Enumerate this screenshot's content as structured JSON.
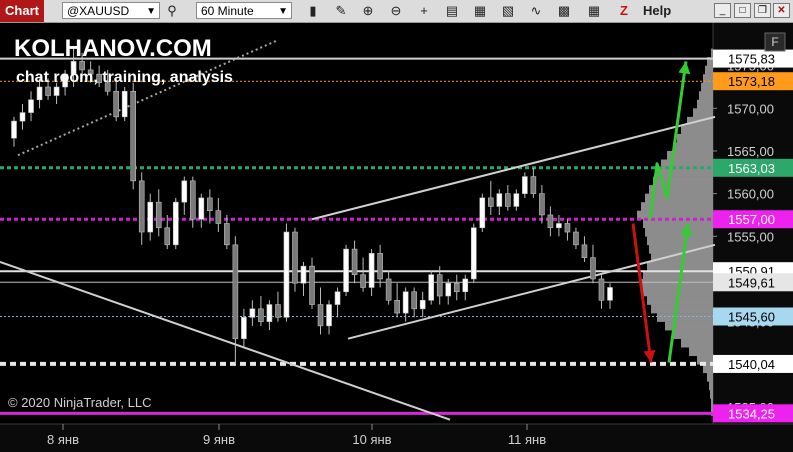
{
  "toolbar": {
    "tab_label": "Chart",
    "instrument": "@XAUUSD",
    "interval": "60 Minute",
    "help_label": "Help",
    "z_label": "Z",
    "icons": [
      "search-icon",
      "bar-style-icon",
      "pencil-icon",
      "zoom-in-icon",
      "zoom-out-icon",
      "crosshair-icon",
      "properties-icon",
      "drawing-tools-icon",
      "indicators-icon",
      "strategies-icon",
      "data-box-icon"
    ]
  },
  "overlay": {
    "brand": "KOLHANOV.COM",
    "tagline": "chat room, training, analysis",
    "copyright": "© 2020 NinjaTrader, LLC",
    "f_label": "F"
  },
  "chart_data": {
    "type": "candlestick",
    "x_labels": [
      "8 янв",
      "9 янв",
      "10 янв",
      "11 янв"
    ],
    "y_ticks": [
      "1575,00",
      "1570,00",
      "1565,00",
      "1560,00",
      "1555,00",
      "1550,00",
      "1545,00",
      "1540,00",
      "1535,00"
    ],
    "y_range": [
      1533,
      1580
    ],
    "price_markers": [
      {
        "value": "1575,83",
        "bg": "#ffffff",
        "fg": "#000000",
        "line_color": "#d0d0d0",
        "line_style": "solid",
        "line_width": 2
      },
      {
        "value": "1573,18",
        "bg": "#ff9a1a",
        "fg": "#000000",
        "line_color": "#ff9a1a",
        "line_style": "dotted",
        "line_width": 1
      },
      {
        "value": "1563,03",
        "bg": "#2ea86a",
        "fg": "#ffffff",
        "line_color": "#2ea86a",
        "line_style": "dashed",
        "line_width": 3
      },
      {
        "value": "1557,00",
        "bg": "#ee22ee",
        "fg": "#ffffff",
        "line_color": "#cc22cc",
        "line_style": "dashed",
        "line_width": 3
      },
      {
        "value": "1550,91",
        "bg": "#ffffff",
        "fg": "#000000",
        "line_color": "#e0e0e0",
        "line_style": "solid",
        "line_width": 2
      },
      {
        "value": "1549,61",
        "bg": "#e6e6e6",
        "fg": "#000000",
        "line_color": "#bdbdbd",
        "line_style": "solid",
        "line_width": 1
      },
      {
        "value": "1545,60",
        "bg": "#a8d8f0",
        "fg": "#000000",
        "line_color": "#7ab8d8",
        "line_style": "dotted",
        "line_width": 1
      },
      {
        "value": "1540,04",
        "bg": "#ffffff",
        "fg": "#000000",
        "line_color": "#e8e8e8",
        "line_style": "dashed",
        "line_width": 4
      },
      {
        "value": "1534,25",
        "bg": "#ee22ee",
        "fg": "#ffffff",
        "line_color": "#dd22dd",
        "line_style": "solid",
        "line_width": 3
      }
    ],
    "candles": [
      {
        "o": 1566.5,
        "h": 1569.0,
        "l": 1565.5,
        "c": 1568.5
      },
      {
        "o": 1568.5,
        "h": 1570.5,
        "l": 1567.5,
        "c": 1569.5
      },
      {
        "o": 1569.5,
        "h": 1572.0,
        "l": 1568.5,
        "c": 1571.0
      },
      {
        "o": 1571.0,
        "h": 1573.5,
        "l": 1570.0,
        "c": 1572.5
      },
      {
        "o": 1572.5,
        "h": 1573.5,
        "l": 1571.0,
        "c": 1571.5
      },
      {
        "o": 1571.5,
        "h": 1573.0,
        "l": 1570.5,
        "c": 1572.5
      },
      {
        "o": 1572.5,
        "h": 1574.5,
        "l": 1571.5,
        "c": 1574.0
      },
      {
        "o": 1574.0,
        "h": 1577.0,
        "l": 1572.5,
        "c": 1575.5
      },
      {
        "o": 1575.5,
        "h": 1576.5,
        "l": 1573.5,
        "c": 1574.5
      },
      {
        "o": 1574.5,
        "h": 1575.5,
        "l": 1573.0,
        "c": 1574.0
      },
      {
        "o": 1574.0,
        "h": 1575.0,
        "l": 1572.5,
        "c": 1573.0
      },
      {
        "o": 1573.0,
        "h": 1574.5,
        "l": 1571.5,
        "c": 1572.0
      },
      {
        "o": 1572.0,
        "h": 1573.5,
        "l": 1568.5,
        "c": 1569.0
      },
      {
        "o": 1569.0,
        "h": 1572.5,
        "l": 1568.5,
        "c": 1572.0
      },
      {
        "o": 1572.0,
        "h": 1573.0,
        "l": 1560.5,
        "c": 1561.5
      },
      {
        "o": 1561.5,
        "h": 1562.5,
        "l": 1554.0,
        "c": 1555.5
      },
      {
        "o": 1555.5,
        "h": 1560.0,
        "l": 1554.5,
        "c": 1559.0
      },
      {
        "o": 1559.0,
        "h": 1560.5,
        "l": 1555.0,
        "c": 1556.0
      },
      {
        "o": 1556.0,
        "h": 1557.5,
        "l": 1553.5,
        "c": 1554.0
      },
      {
        "o": 1554.0,
        "h": 1559.5,
        "l": 1553.5,
        "c": 1559.0
      },
      {
        "o": 1559.0,
        "h": 1562.0,
        "l": 1557.5,
        "c": 1561.5
      },
      {
        "o": 1561.5,
        "h": 1562.0,
        "l": 1556.0,
        "c": 1557.0
      },
      {
        "o": 1557.0,
        "h": 1560.0,
        "l": 1556.0,
        "c": 1559.5
      },
      {
        "o": 1559.5,
        "h": 1560.5,
        "l": 1556.5,
        "c": 1558.0
      },
      {
        "o": 1558.0,
        "h": 1559.5,
        "l": 1555.5,
        "c": 1556.5
      },
      {
        "o": 1556.5,
        "h": 1557.5,
        "l": 1553.5,
        "c": 1554.0
      },
      {
        "o": 1554.0,
        "h": 1555.0,
        "l": 1540.0,
        "c": 1543.0
      },
      {
        "o": 1543.0,
        "h": 1546.5,
        "l": 1542.0,
        "c": 1545.5
      },
      {
        "o": 1545.5,
        "h": 1547.5,
        "l": 1544.5,
        "c": 1546.5
      },
      {
        "o": 1546.5,
        "h": 1548.0,
        "l": 1544.5,
        "c": 1545.0
      },
      {
        "o": 1545.0,
        "h": 1547.5,
        "l": 1544.0,
        "c": 1547.0
      },
      {
        "o": 1547.0,
        "h": 1548.5,
        "l": 1545.0,
        "c": 1545.5
      },
      {
        "o": 1545.5,
        "h": 1556.5,
        "l": 1545.0,
        "c": 1555.5
      },
      {
        "o": 1555.5,
        "h": 1556.0,
        "l": 1548.5,
        "c": 1549.5
      },
      {
        "o": 1549.5,
        "h": 1552.0,
        "l": 1548.0,
        "c": 1551.5
      },
      {
        "o": 1551.5,
        "h": 1552.5,
        "l": 1546.5,
        "c": 1547.0
      },
      {
        "o": 1547.0,
        "h": 1549.0,
        "l": 1543.5,
        "c": 1544.5
      },
      {
        "o": 1544.5,
        "h": 1547.5,
        "l": 1543.5,
        "c": 1547.0
      },
      {
        "o": 1547.0,
        "h": 1549.0,
        "l": 1545.5,
        "c": 1548.5
      },
      {
        "o": 1548.5,
        "h": 1554.0,
        "l": 1548.0,
        "c": 1553.5
      },
      {
        "o": 1553.5,
        "h": 1554.5,
        "l": 1549.5,
        "c": 1550.5
      },
      {
        "o": 1550.5,
        "h": 1552.5,
        "l": 1548.5,
        "c": 1549.0
      },
      {
        "o": 1549.0,
        "h": 1553.5,
        "l": 1548.0,
        "c": 1553.0
      },
      {
        "o": 1553.0,
        "h": 1554.0,
        "l": 1549.0,
        "c": 1550.0
      },
      {
        "o": 1550.0,
        "h": 1551.0,
        "l": 1547.0,
        "c": 1547.5
      },
      {
        "o": 1547.5,
        "h": 1549.5,
        "l": 1545.5,
        "c": 1546.0
      },
      {
        "o": 1546.0,
        "h": 1549.0,
        "l": 1545.0,
        "c": 1548.5
      },
      {
        "o": 1548.5,
        "h": 1549.0,
        "l": 1545.5,
        "c": 1546.5
      },
      {
        "o": 1546.5,
        "h": 1548.5,
        "l": 1545.5,
        "c": 1547.5
      },
      {
        "o": 1547.5,
        "h": 1551.0,
        "l": 1547.0,
        "c": 1550.5
      },
      {
        "o": 1550.5,
        "h": 1551.5,
        "l": 1547.0,
        "c": 1548.0
      },
      {
        "o": 1548.0,
        "h": 1550.0,
        "l": 1547.0,
        "c": 1549.5
      },
      {
        "o": 1549.5,
        "h": 1550.5,
        "l": 1547.5,
        "c": 1548.5
      },
      {
        "o": 1548.5,
        "h": 1550.5,
        "l": 1547.5,
        "c": 1550.0
      },
      {
        "o": 1550.0,
        "h": 1556.5,
        "l": 1549.5,
        "c": 1556.0
      },
      {
        "o": 1556.0,
        "h": 1560.0,
        "l": 1555.5,
        "c": 1559.5
      },
      {
        "o": 1559.5,
        "h": 1561.5,
        "l": 1557.5,
        "c": 1558.5
      },
      {
        "o": 1558.5,
        "h": 1560.5,
        "l": 1557.5,
        "c": 1560.0
      },
      {
        "o": 1560.0,
        "h": 1561.0,
        "l": 1558.0,
        "c": 1558.5
      },
      {
        "o": 1558.5,
        "h": 1560.5,
        "l": 1558.0,
        "c": 1560.0
      },
      {
        "o": 1560.0,
        "h": 1562.5,
        "l": 1559.5,
        "c": 1562.0
      },
      {
        "o": 1562.0,
        "h": 1563.0,
        "l": 1559.5,
        "c": 1560.0
      },
      {
        "o": 1560.0,
        "h": 1561.0,
        "l": 1556.5,
        "c": 1557.5
      },
      {
        "o": 1557.5,
        "h": 1558.5,
        "l": 1555.0,
        "c": 1556.0
      },
      {
        "o": 1556.0,
        "h": 1557.5,
        "l": 1555.0,
        "c": 1556.5
      },
      {
        "o": 1556.5,
        "h": 1557.0,
        "l": 1554.5,
        "c": 1555.5
      },
      {
        "o": 1555.5,
        "h": 1556.0,
        "l": 1553.5,
        "c": 1554.0
      },
      {
        "o": 1554.0,
        "h": 1555.0,
        "l": 1552.0,
        "c": 1552.5
      },
      {
        "o": 1552.5,
        "h": 1554.0,
        "l": 1549.5,
        "c": 1550.0
      },
      {
        "o": 1550.0,
        "h": 1550.5,
        "l": 1546.5,
        "c": 1547.5
      },
      {
        "o": 1547.5,
        "h": 1549.5,
        "l": 1546.5,
        "c": 1549.0
      }
    ],
    "trend_lines": [
      {
        "x1": 18,
        "p1": 1564.5,
        "x2": 278,
        "p2": 1578.0,
        "color": "#a8a8a8",
        "style": "dotted"
      },
      {
        "x1": 0,
        "p1": 1552.0,
        "x2": 450,
        "p2": 1533.5,
        "color": "#cfcfcf",
        "style": "solid"
      },
      {
        "x1": 312,
        "p1": 1557.0,
        "x2": 715,
        "p2": 1569.0,
        "color": "#cfcfcf",
        "style": "solid"
      },
      {
        "x1": 348,
        "p1": 1543.0,
        "x2": 715,
        "p2": 1554.0,
        "color": "#cfcfcf",
        "style": "solid"
      }
    ],
    "arrows": [
      {
        "color": "#33cc33",
        "points": [
          [
            650,
            1557.0
          ],
          [
            657,
            1563.5
          ],
          [
            667,
            1559.5
          ],
          [
            686,
            1575.5
          ]
        ]
      },
      {
        "color": "#33cc33",
        "points": [
          [
            669,
            1540.2
          ],
          [
            688,
            1556.5
          ]
        ]
      },
      {
        "color": "#cc1111",
        "points": [
          [
            633,
            1556.5
          ],
          [
            651,
            1540.2
          ]
        ]
      }
    ],
    "volume_profile": [
      [
        1576.5,
        2
      ],
      [
        1575.5,
        6
      ],
      [
        1574.5,
        8
      ],
      [
        1573.5,
        10
      ],
      [
        1572.5,
        12
      ],
      [
        1571.5,
        14
      ],
      [
        1570.5,
        16
      ],
      [
        1569.5,
        20
      ],
      [
        1568.5,
        26
      ],
      [
        1567.5,
        32
      ],
      [
        1566.5,
        36
      ],
      [
        1565.5,
        40
      ],
      [
        1564.5,
        46
      ],
      [
        1563.5,
        52
      ],
      [
        1562.5,
        56
      ],
      [
        1561.5,
        60
      ],
      [
        1560.5,
        64
      ],
      [
        1559.5,
        68
      ],
      [
        1558.5,
        72
      ],
      [
        1557.5,
        76
      ],
      [
        1556.5,
        70
      ],
      [
        1555.5,
        68
      ],
      [
        1554.5,
        66
      ],
      [
        1553.5,
        64
      ],
      [
        1552.5,
        62
      ],
      [
        1551.5,
        66
      ],
      [
        1550.5,
        70
      ],
      [
        1549.5,
        72
      ],
      [
        1548.5,
        70
      ],
      [
        1547.5,
        66
      ],
      [
        1546.5,
        62
      ],
      [
        1545.5,
        56
      ],
      [
        1544.5,
        48
      ],
      [
        1543.5,
        40
      ],
      [
        1542.5,
        32
      ],
      [
        1541.5,
        24
      ],
      [
        1540.5,
        16
      ],
      [
        1539.5,
        10
      ],
      [
        1538.5,
        6
      ],
      [
        1537.5,
        4
      ],
      [
        1536.5,
        3
      ],
      [
        1535.5,
        2
      ],
      [
        1534.5,
        2
      ]
    ]
  }
}
